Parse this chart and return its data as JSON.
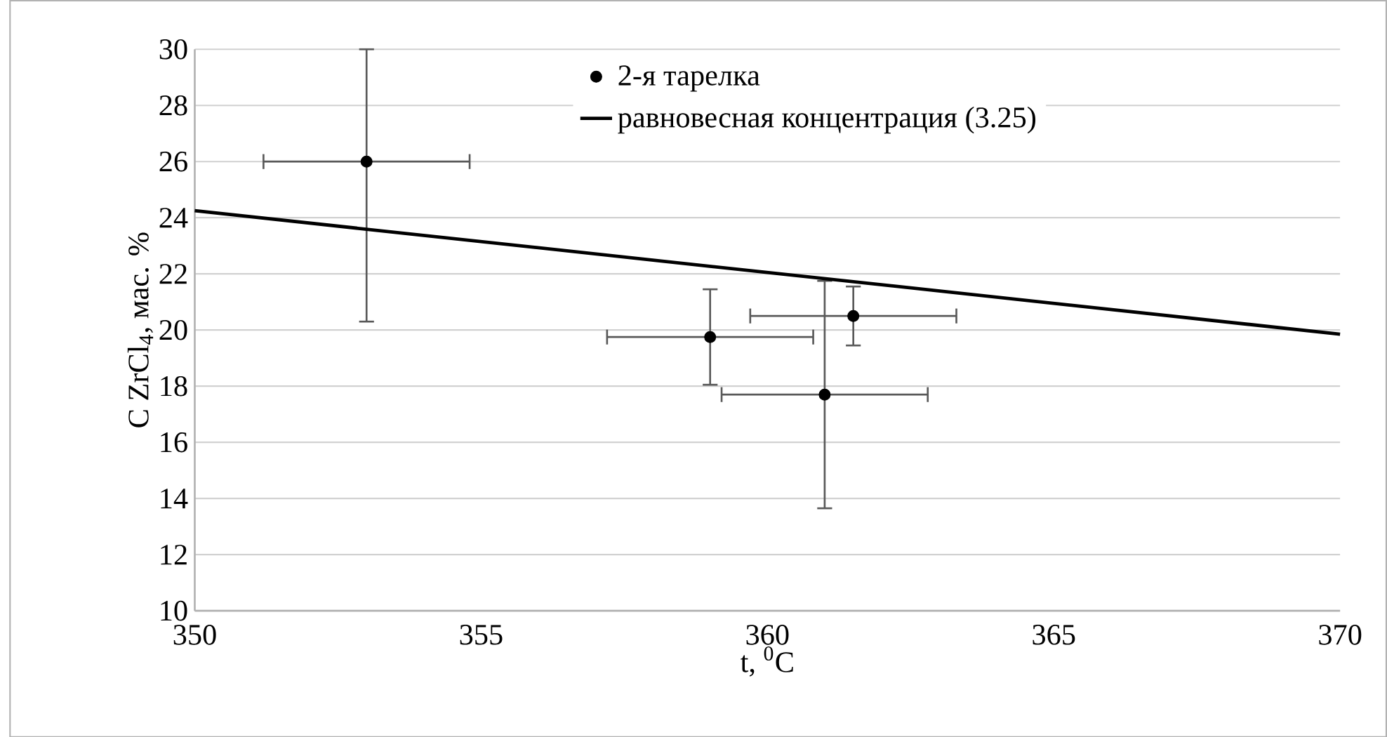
{
  "chart_data": {
    "type": "scatter",
    "xlabel": "t, $^{0}$C",
    "ylabel": "C ZrCl$_{4}$, мас. %",
    "xlim": [
      350,
      370
    ],
    "xticks": [
      350,
      355,
      360,
      365,
      370
    ],
    "ylim": [
      10,
      30
    ],
    "yticks": [
      10,
      12,
      14,
      16,
      18,
      20,
      22,
      24,
      26,
      28,
      30
    ],
    "grid": "y",
    "legend": "top right",
    "series": [
      {
        "name": "2-я тарелка",
        "color": "#000000",
        "marker": "circle",
        "x": [
          353,
          359,
          361.5,
          361
        ],
        "values": [
          26,
          19.75,
          20.5,
          17.7
        ],
        "errors": [
          [
            20.3,
            30
          ],
          1.7,
          1.05,
          4.05
        ],
        "xerrors": [
          1.8,
          1.8,
          1.8,
          1.8
        ]
      },
      {
        "name": "равновесная концентрация (3.25)",
        "type": "line",
        "color": "#000000",
        "marker": "none",
        "line_style": "solid",
        "x": [
          350,
          370
        ],
        "values": [
          24.25,
          19.85
        ]
      }
    ]
  }
}
